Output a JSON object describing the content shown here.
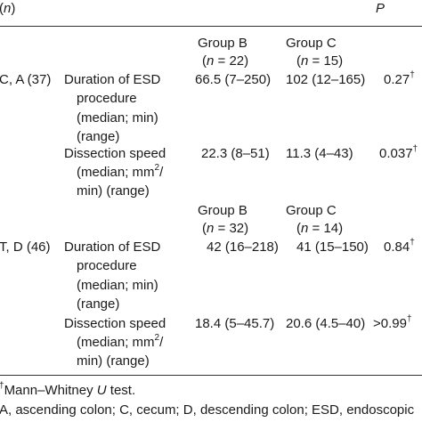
{
  "header": {
    "col1_prefix": "(",
    "col1_italic": "n",
    "col1_suffix": ")",
    "p_label": "P"
  },
  "segments": [
    {
      "groups": [
        {
          "name": "Group B",
          "n_prefix": "(",
          "n_italic": "n",
          "n_eq": " = 22)"
        },
        {
          "name": "Group C",
          "n_prefix": "(",
          "n_italic": "n",
          "n_eq": " = 15)"
        }
      ],
      "location": "C, A (37)",
      "rows": [
        {
          "label_lines": [
            "Duration of ESD",
            "procedure",
            "(median; min)",
            "(range)"
          ],
          "b": "66.5 (7–250)",
          "c": "102 (12–165)",
          "p": "0.27",
          "p_mark": "†"
        },
        {
          "label_lines": [
            "Dissection speed",
            "(median; mm",
            "min) (range)"
          ],
          "label_sup": "2",
          "label_sup_suffix": "/",
          "b": "22.3 (8–51)",
          "c": "11.3 (4–43)",
          "p": "0.037",
          "p_mark": "†"
        }
      ]
    },
    {
      "groups": [
        {
          "name": "Group B",
          "n_prefix": "(",
          "n_italic": "n",
          "n_eq": " = 32)"
        },
        {
          "name": "Group C",
          "n_prefix": "(",
          "n_italic": "n",
          "n_eq": " = 14)"
        }
      ],
      "location": "T, D (46)",
      "rows": [
        {
          "label_lines": [
            "Duration of ESD",
            "procedure",
            "(median; min)",
            "(range)"
          ],
          "b": "42 (16–218)",
          "c": "41 (15–150)",
          "p": "0.84",
          "p_mark": "†"
        },
        {
          "label_lines": [
            "Dissection speed",
            "(median; mm",
            "min) (range)"
          ],
          "label_sup": "2",
          "label_sup_suffix": "/",
          "b": "18.4 (5–45.7)",
          "c": "20.6 (4.5–40)",
          "p": ">0.99",
          "p_mark": "†"
        }
      ]
    }
  ],
  "footnotes": {
    "mark": "†",
    "test_prefix": "Mann–Whitney ",
    "test_italic": "U",
    "test_suffix": " test.",
    "abbrev": "A, ascending colon; C, cecum; D, descending colon; ESD, endoscopic"
  }
}
